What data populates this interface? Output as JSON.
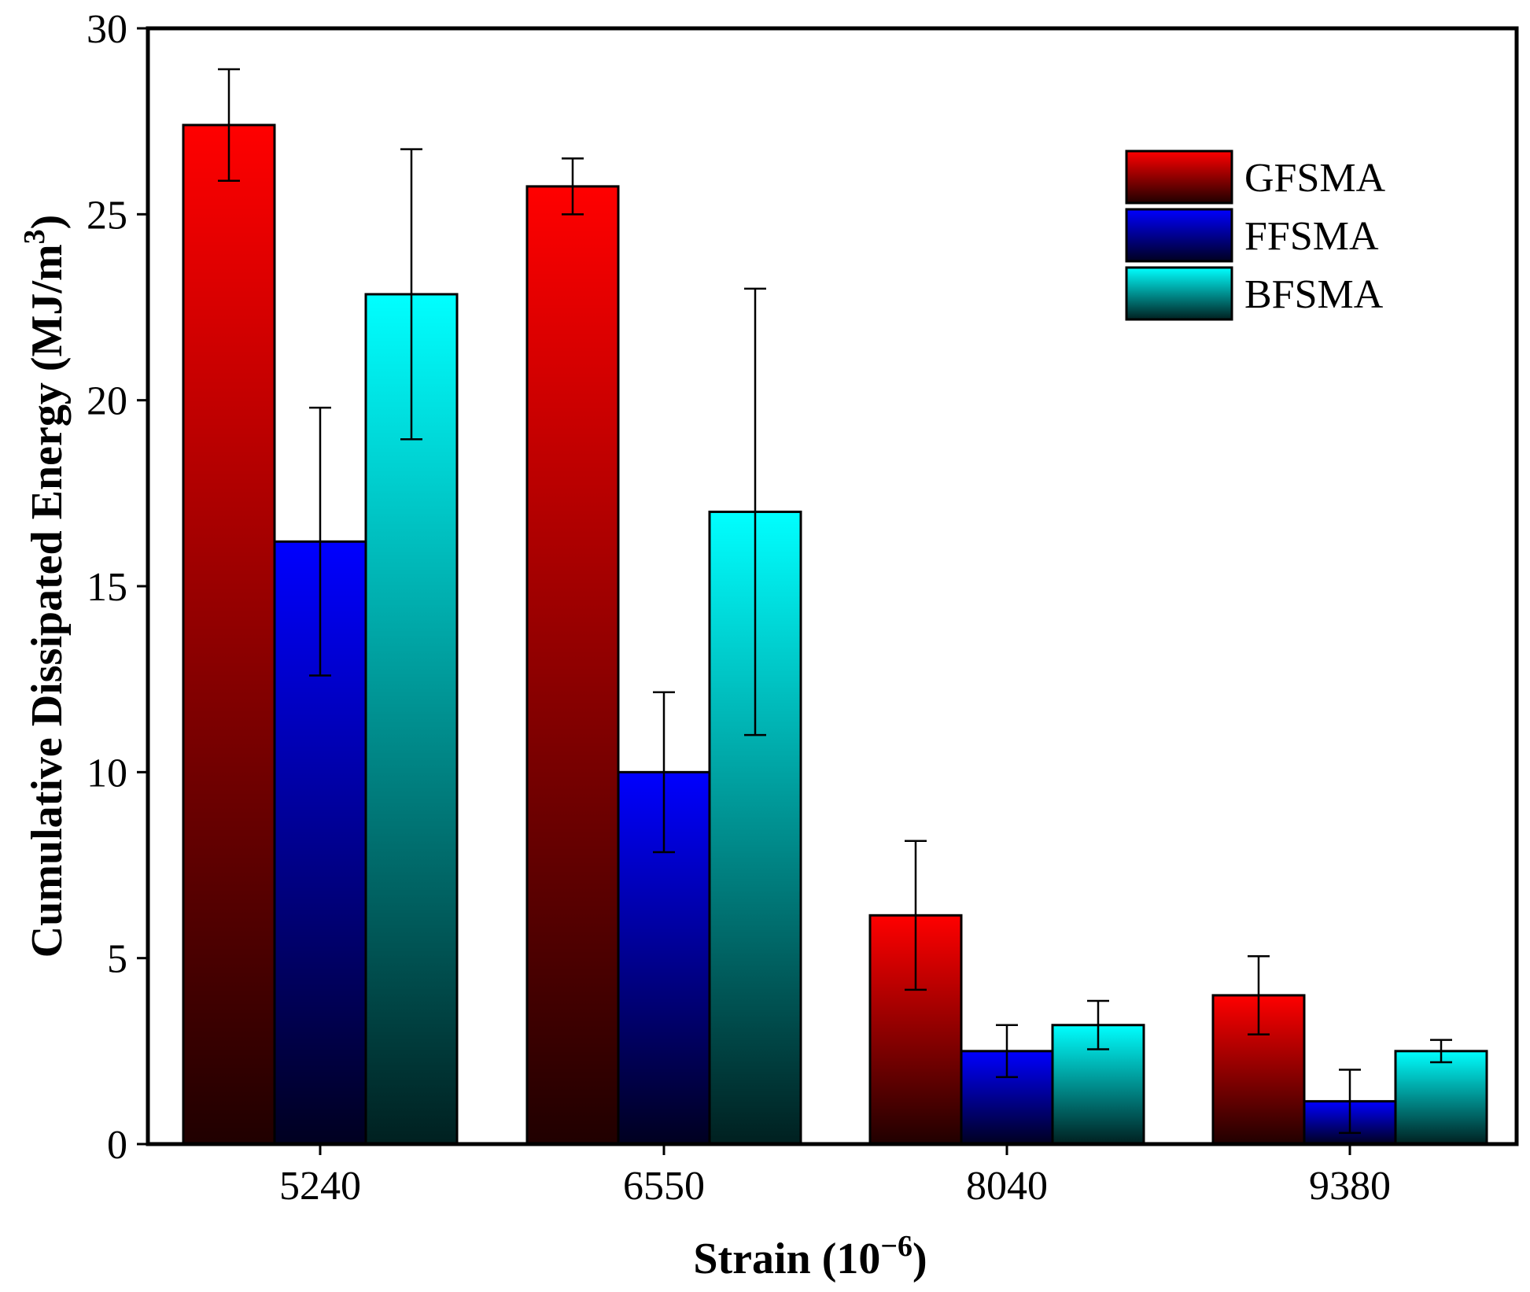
{
  "chart_data": {
    "type": "bar",
    "title": "",
    "xlabel": "Strain (10",
    "xlabel_sup": "−6",
    "xlabel_close": ")",
    "ylabel": "Cumulative Dissipated Energy (MJ/m",
    "ylabel_sup": "3",
    "ylabel_close": ")",
    "ylim": [
      0,
      30
    ],
    "yticks": [
      "0",
      "5",
      "10",
      "15",
      "20",
      "25",
      "30"
    ],
    "categories": [
      "5240",
      "6550",
      "8040",
      "9380"
    ],
    "legend_position": "top-right",
    "series": [
      {
        "name": "GFSMA",
        "color_top": "#ff0000",
        "color_bottom": "#200000",
        "values": [
          27.4,
          25.75,
          6.15,
          4.0
        ],
        "errors": [
          1.5,
          0.75,
          2.0,
          1.05
        ]
      },
      {
        "name": "FFSMA",
        "color_top": "#0000ff",
        "color_bottom": "#000020",
        "values": [
          16.2,
          10.0,
          2.5,
          1.15
        ],
        "errors": [
          3.6,
          2.15,
          0.7,
          0.85
        ]
      },
      {
        "name": "BFSMA",
        "color_top": "#00ffff",
        "color_bottom": "#002020",
        "values": [
          22.85,
          17.0,
          3.2,
          2.5
        ],
        "errors": [
          3.9,
          6.0,
          0.65,
          0.3
        ]
      }
    ]
  }
}
